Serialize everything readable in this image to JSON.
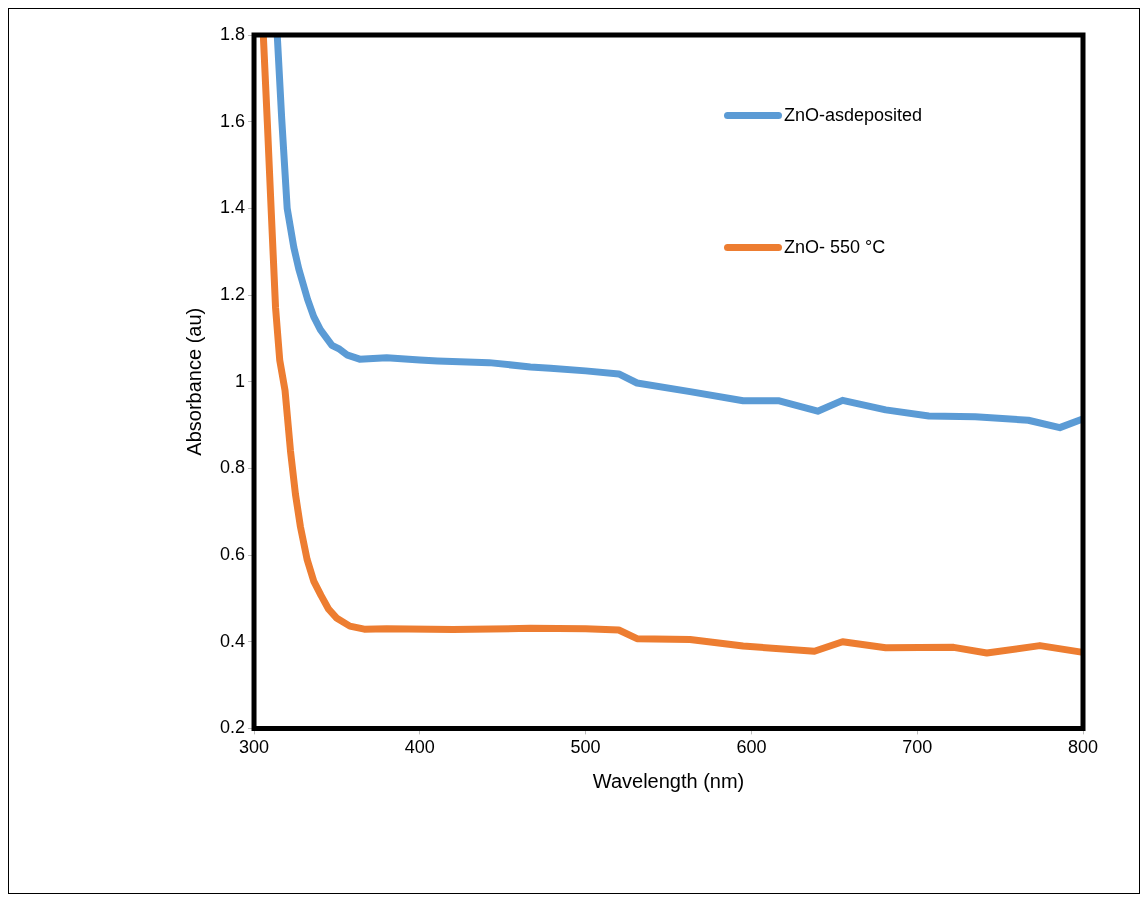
{
  "chart_data": {
    "type": "line",
    "xlabel": "Wavelength (nm)",
    "ylabel": "Absorbance (au)",
    "xlim": [
      300,
      800
    ],
    "xticks": [
      300,
      400,
      500,
      600,
      700,
      800
    ],
    "ylim": [
      0.2,
      1.8
    ],
    "yticks": [
      0.2,
      0.4,
      0.6,
      0.8,
      1,
      1.2,
      1.4,
      1.6,
      1.8
    ],
    "grid": false,
    "legend": "top right",
    "marker": "none",
    "line_style": "solid",
    "series": [
      {
        "name": "ZnO-asdeposited",
        "color": "#5b9bd5",
        "x": [
          314,
          316.7,
          320,
          324,
          327,
          332.3,
          336,
          340,
          347,
          351.6,
          356,
          363.7,
          380,
          400,
          410.7,
          441.8,
          466.7,
          478.8,
          500,
          520,
          531,
          563,
          595,
          616.8,
          640,
          655,
          681,
          707,
          735,
          767,
          786,
          799
        ],
        "values": [
          1.8,
          1.607,
          1.4,
          1.31,
          1.26,
          1.19,
          1.15,
          1.12,
          1.084,
          1.075,
          1.062,
          1.052,
          1.055,
          1.05,
          1.048,
          1.044,
          1.034,
          1.031,
          1.025,
          1.018,
          0.997,
          0.977,
          0.956,
          0.956,
          0.932,
          0.957,
          0.935,
          0.921,
          0.919,
          0.911,
          0.894,
          0.913
        ]
      },
      {
        "name": "ZnO- 550 °C",
        "color": "#ed7d31",
        "x": [
          305.6,
          308,
          310.3,
          313,
          315.5,
          318.7,
          322,
          325,
          328,
          332,
          336,
          340.4,
          345,
          350,
          357.8,
          366.5,
          380,
          420,
          466.7,
          500,
          520,
          531,
          563,
          595,
          638,
          655,
          681,
          722,
          742,
          774,
          799
        ],
        "values": [
          1.8,
          1.6,
          1.4,
          1.17,
          1.05,
          0.98,
          0.84,
          0.74,
          0.665,
          0.59,
          0.54,
          0.507,
          0.475,
          0.454,
          0.436,
          0.429,
          0.43,
          0.428,
          0.431,
          0.43,
          0.427,
          0.407,
          0.405,
          0.39,
          0.378,
          0.4,
          0.386,
          0.387,
          0.374,
          0.391,
          0.376
        ]
      }
    ]
  }
}
